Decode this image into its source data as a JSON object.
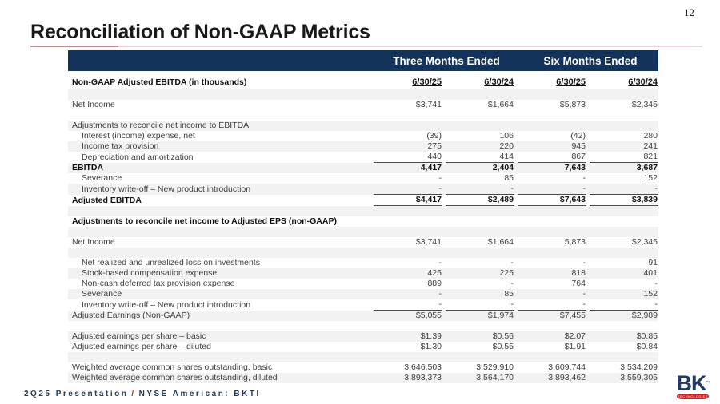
{
  "page_number": "12",
  "title": "Reconciliation of Non-GAAP Metrics",
  "table": {
    "group_headers": [
      "Three Months Ended",
      "Six Months Ended"
    ],
    "rows": [
      {
        "type": "colheader",
        "label": "Non-GAAP Adjusted EBITDA (in thousands)",
        "bold": true,
        "values": [
          "6/30/25",
          "6/30/24",
          "6/30/25",
          "6/30/24"
        ],
        "stripe": false
      },
      {
        "type": "spacer",
        "stripe": true
      },
      {
        "type": "data",
        "label": "Net Income",
        "values": [
          "$3,741",
          "$1,664",
          "$5,873",
          "$2,345"
        ],
        "stripe": false
      },
      {
        "type": "spacer",
        "stripe": false
      },
      {
        "type": "data",
        "label": "Adjustments to reconcile net income to EBITDA",
        "values": [
          "",
          "",
          "",
          ""
        ],
        "stripe": true
      },
      {
        "type": "data",
        "label": "Interest (income) expense, net",
        "indent": true,
        "values": [
          "(39)",
          "106",
          "(42)",
          "280"
        ],
        "stripe": false
      },
      {
        "type": "data",
        "label": "Income tax provision",
        "indent": true,
        "values": [
          "275",
          "220",
          "945",
          "241"
        ],
        "stripe": true
      },
      {
        "type": "data",
        "label": "Depreciation and amortization",
        "indent": true,
        "underline": true,
        "values": [
          "440",
          "414",
          "867",
          "821"
        ],
        "stripe": false
      },
      {
        "type": "data",
        "label": "EBITDA",
        "bold": true,
        "values": [
          "4,417",
          "2,404",
          "7,643",
          "3,687"
        ],
        "stripe": true
      },
      {
        "type": "data",
        "label": "Severance",
        "indent": true,
        "values": [
          "-",
          "85",
          "-",
          "152"
        ],
        "stripe": false
      },
      {
        "type": "data",
        "label": "Inventory write-off – New product introduction",
        "indent": true,
        "underline": true,
        "values": [
          "-",
          "-",
          "-",
          "-"
        ],
        "stripe": true
      },
      {
        "type": "data",
        "label": "Adjusted EBITDA",
        "bold": true,
        "underline": true,
        "values": [
          "$4,417",
          "$2,489",
          "$7,643",
          "$3,839"
        ],
        "stripe": false
      },
      {
        "type": "spacer",
        "stripe": true
      },
      {
        "type": "data",
        "label": "Adjustments to reconcile net income to Adjusted EPS (non-GAAP)",
        "bold": true,
        "values": [
          "",
          "",
          "",
          ""
        ],
        "stripe": false
      },
      {
        "type": "spacer",
        "stripe": true
      },
      {
        "type": "data",
        "label": "Net Income",
        "values": [
          "$3,741",
          "$1,664",
          "5,873",
          "$2,345"
        ],
        "stripe": false
      },
      {
        "type": "spacer",
        "stripe": true
      },
      {
        "type": "data",
        "label": "Net realized and unrealized loss on investments",
        "indent": true,
        "values": [
          "-",
          "-",
          "-",
          "91"
        ],
        "stripe": false
      },
      {
        "type": "data",
        "label": "Stock-based compensation expense",
        "indent": true,
        "values": [
          "425",
          "225",
          "818",
          "401"
        ],
        "stripe": true
      },
      {
        "type": "data",
        "label": "Non-cash deferred tax provision expense",
        "indent": true,
        "values": [
          "889",
          "-",
          "764",
          "-"
        ],
        "stripe": false
      },
      {
        "type": "data",
        "label": "Severance",
        "indent": true,
        "values": [
          "-",
          "85",
          "-",
          "152"
        ],
        "stripe": true
      },
      {
        "type": "data",
        "label": "Inventory write-off – New product introduction",
        "indent": true,
        "underline": true,
        "values": [
          "-",
          "-",
          "-",
          "-"
        ],
        "stripe": false
      },
      {
        "type": "data",
        "label": "Adjusted Earnings (Non-GAAP)",
        "values": [
          "$5,055",
          "$1,974",
          "$7,455",
          "$2,989"
        ],
        "stripe": true
      },
      {
        "type": "spacer",
        "stripe": false
      },
      {
        "type": "data",
        "label": "Adjusted earnings per share – basic",
        "values": [
          "$1.39",
          "$0.56",
          "$2.07",
          "$0.85"
        ],
        "stripe": true
      },
      {
        "type": "data",
        "label": "Adjusted earnings per share – diluted",
        "values": [
          "$1.30",
          "$0.55",
          "$1.91",
          "$0.84"
        ],
        "stripe": false
      },
      {
        "type": "spacer",
        "stripe": true
      },
      {
        "type": "data",
        "label": "Weighted average common shares outstanding, basic",
        "values": [
          "3,646,503",
          "3,529,910",
          "3,609,744",
          "3,534,209"
        ],
        "stripe": false
      },
      {
        "type": "data",
        "label": "Weighted average common shares outstanding, diluted",
        "values": [
          "3,893,373",
          "3,564,170",
          "3,893,462",
          "3,559,305"
        ],
        "stripe": true
      }
    ]
  },
  "footer": {
    "part1": "2Q25 Presentation",
    "slash": "/",
    "part2": "NYSE American: BKTI"
  },
  "logo": {
    "text": "BK",
    "trademark": "™",
    "sub": "TECHNOLOGIES"
  },
  "colors": {
    "header_bar": "#14335a",
    "stripe": "#f2f2f2",
    "footer_navy": "#1f3864",
    "accent_red": "#cc2127",
    "title_underline": "#c98b8b"
  }
}
